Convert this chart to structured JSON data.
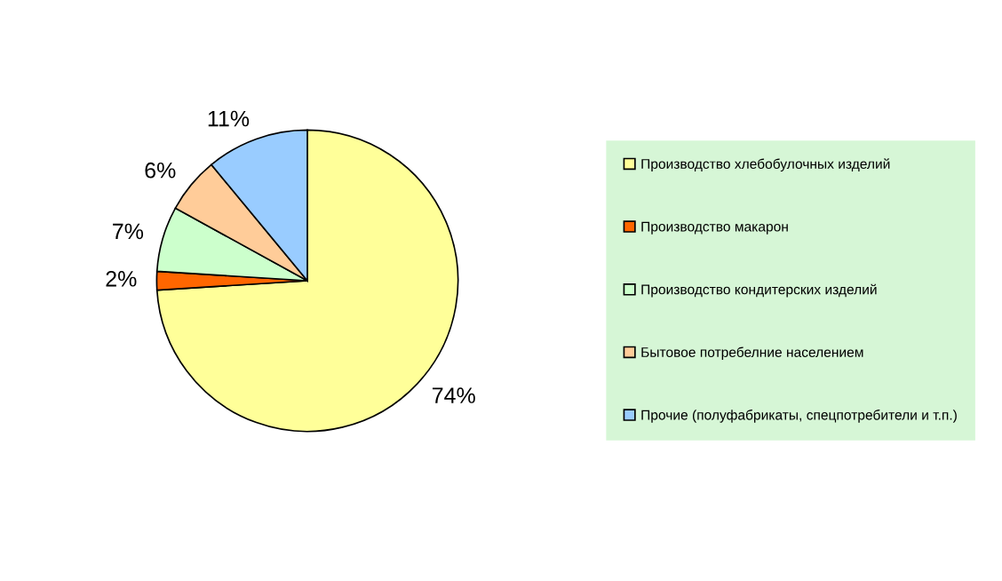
{
  "chart_data": {
    "type": "pie",
    "categories": [
      "Производство хлебобулочных изделий",
      "Производство макарон",
      "Производство кондитерских изделий",
      "Бытовое потребелние населением",
      "Прочие (полуфабрикаты, спецпотребители и т.п.)"
    ],
    "values": [
      74,
      2,
      7,
      6,
      11
    ],
    "colors": [
      "#ffff99",
      "#ff6600",
      "#ccffcc",
      "#ffcc99",
      "#99ccff"
    ],
    "value_labels": [
      "74%",
      "2%",
      "7%",
      "6%",
      "11%"
    ],
    "legend": "right"
  }
}
